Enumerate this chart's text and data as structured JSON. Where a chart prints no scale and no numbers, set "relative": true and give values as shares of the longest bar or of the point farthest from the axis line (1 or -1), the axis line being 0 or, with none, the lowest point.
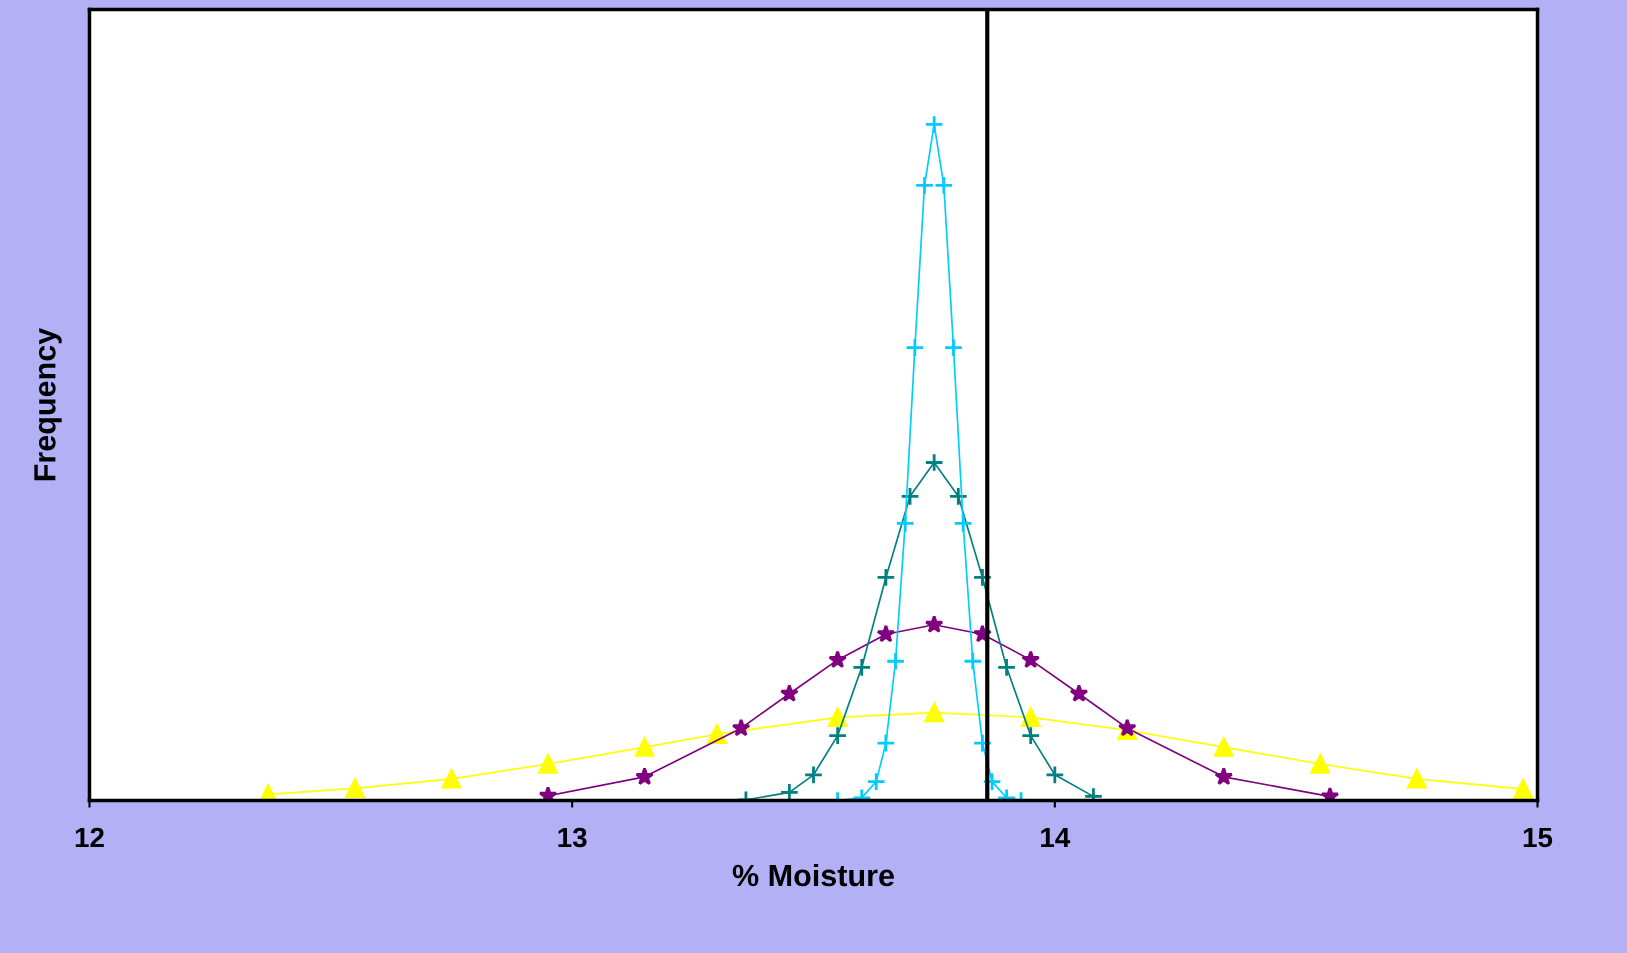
{
  "chart_data": {
    "type": "line",
    "xlabel": "% Moisture",
    "ylabel": "Frequency",
    "relative": true,
    "xlim": [
      12,
      15
    ],
    "xticks": [
      12,
      13,
      14,
      15
    ],
    "grid": false,
    "legend": false,
    "ref_lines": [
      {
        "axis": "x",
        "value": 13.86,
        "color": "#000000",
        "line_style": "solid"
      }
    ],
    "series": [
      {
        "color": "#ffff00",
        "marker": "triangle",
        "x": [
          12.37,
          12.55,
          12.75,
          12.95,
          13.15,
          13.3,
          13.55,
          13.75,
          13.95,
          14.15,
          14.35,
          14.55,
          14.75,
          14.97
        ],
        "values": [
          0.009,
          0.018,
          0.032,
          0.054,
          0.079,
          0.098,
          0.123,
          0.13,
          0.123,
          0.104,
          0.079,
          0.054,
          0.032,
          0.017
        ]
      },
      {
        "color": "#800080",
        "marker": "star",
        "x": [
          12.95,
          13.15,
          13.35,
          13.45,
          13.55,
          13.65,
          13.75,
          13.85,
          13.95,
          14.05,
          14.15,
          14.35,
          14.57
        ],
        "values": [
          0.007,
          0.035,
          0.107,
          0.158,
          0.208,
          0.246,
          0.26,
          0.246,
          0.208,
          0.158,
          0.107,
          0.035,
          0.006
        ]
      },
      {
        "color": "#008080",
        "marker": "cross",
        "x": [
          13.36,
          13.45,
          13.5,
          13.55,
          13.6,
          13.65,
          13.7,
          13.75,
          13.8,
          13.85,
          13.9,
          13.95,
          14.0,
          14.08
        ],
        "values": [
          0.001,
          0.012,
          0.038,
          0.096,
          0.197,
          0.33,
          0.45,
          0.5,
          0.45,
          0.33,
          0.197,
          0.096,
          0.038,
          0.006
        ]
      },
      {
        "color": "#00ccff",
        "marker": "cross",
        "x": [
          13.55,
          13.6,
          13.63,
          13.65,
          13.67,
          13.69,
          13.71,
          13.73,
          13.75,
          13.77,
          13.79,
          13.81,
          13.83,
          13.85,
          13.87,
          13.9,
          13.93
        ],
        "values": [
          0.0,
          0.004,
          0.028,
          0.085,
          0.206,
          0.41,
          0.67,
          0.91,
          1,
          0.91,
          0.67,
          0.41,
          0.206,
          0.085,
          0.028,
          0.004,
          0.0
        ]
      }
    ]
  }
}
